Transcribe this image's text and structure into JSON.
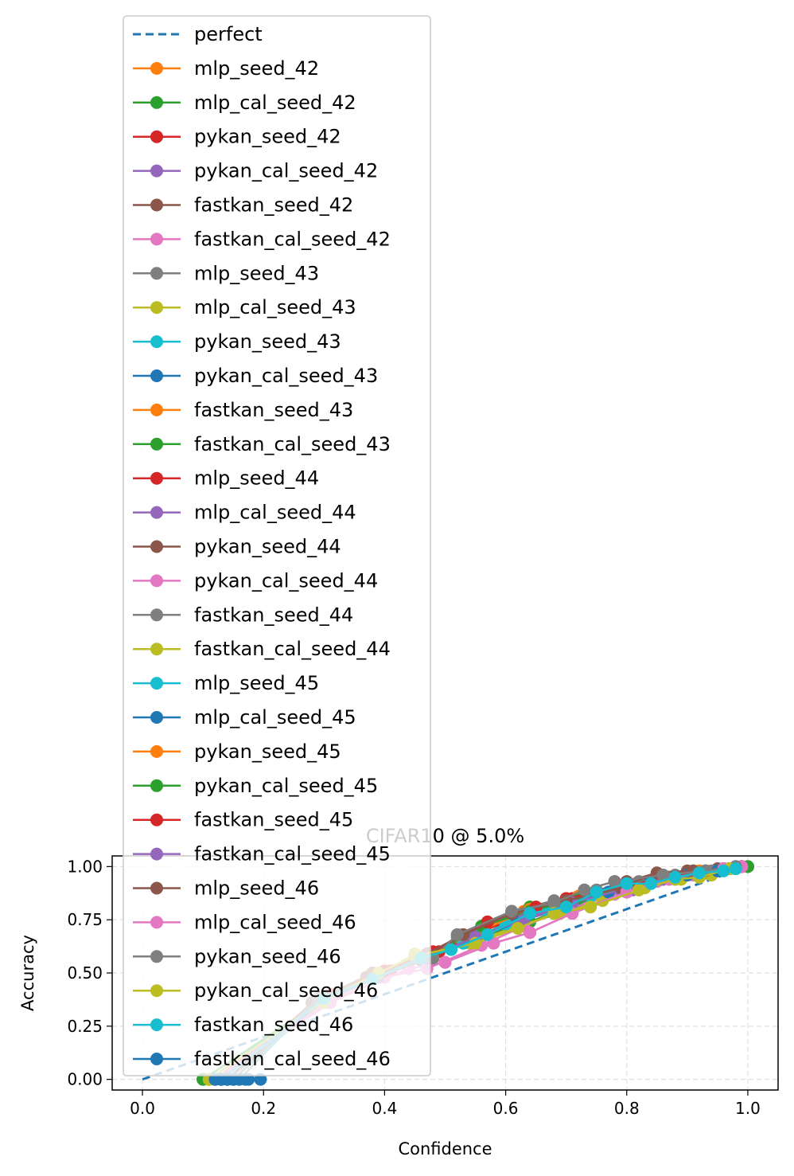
{
  "chart_data": {
    "type": "line",
    "title": "CIFAR10 @ 5.0%",
    "xlabel": "Confidence",
    "ylabel": "Accuracy",
    "xlim": [
      -0.05,
      1.05
    ],
    "ylim": [
      -0.05,
      1.05
    ],
    "xticks": [
      "0.0",
      "0.2",
      "0.4",
      "0.6",
      "0.8",
      "1.0"
    ],
    "yticks": [
      "0.00",
      "0.25",
      "0.50",
      "0.75",
      "1.00"
    ],
    "grid": true,
    "legend_position": "top-left",
    "reference": {
      "name": "perfect",
      "color": "#1f77b4",
      "x": [
        0,
        1
      ],
      "y": [
        0,
        1
      ]
    },
    "series": [
      {
        "name": "mlp_seed_42",
        "color": "#ff7f0e",
        "x": [
          0.12,
          0.3,
          0.4,
          0.48,
          0.56,
          0.64,
          0.72,
          0.8,
          0.87,
          0.93,
          0.97,
          0.99
        ],
        "y": [
          0,
          0.38,
          0.5,
          0.59,
          0.7,
          0.81,
          0.86,
          0.91,
          0.95,
          0.98,
          0.99,
          1.0
        ]
      },
      {
        "name": "mlp_cal_seed_42",
        "color": "#2ca02c",
        "x": [
          0.1,
          0.29,
          0.39,
          0.47,
          0.55,
          0.64,
          0.73,
          0.82,
          0.88,
          0.93,
          0.97,
          1.0
        ],
        "y": [
          0,
          0.36,
          0.48,
          0.57,
          0.66,
          0.74,
          0.84,
          0.9,
          0.95,
          0.97,
          0.99,
          1.0
        ]
      },
      {
        "name": "pykan_seed_42",
        "color": "#d62728",
        "x": [
          0.13,
          0.31,
          0.41,
          0.49,
          0.57,
          0.65,
          0.7,
          0.79,
          0.86,
          0.92,
          0.96,
          0.99
        ],
        "y": [
          0,
          0.4,
          0.51,
          0.6,
          0.74,
          0.8,
          0.85,
          0.9,
          0.95,
          0.97,
          0.99,
          1.0
        ]
      },
      {
        "name": "pykan_cal_seed_42",
        "color": "#9467bd",
        "x": [
          0.11,
          0.3,
          0.38,
          0.46,
          0.55,
          0.63,
          0.72,
          0.81,
          0.88,
          0.93,
          0.97,
          0.99
        ],
        "y": [
          0,
          0.37,
          0.47,
          0.56,
          0.66,
          0.75,
          0.82,
          0.89,
          0.94,
          0.97,
          0.99,
          1.0
        ]
      },
      {
        "name": "fastkan_seed_42",
        "color": "#8c564b",
        "x": [
          0.14,
          0.28,
          0.38,
          0.47,
          0.53,
          0.61,
          0.7,
          0.79,
          0.85,
          0.91,
          0.96,
          0.99
        ],
        "y": [
          0,
          0.36,
          0.5,
          0.59,
          0.68,
          0.78,
          0.84,
          0.9,
          0.96,
          0.98,
          0.99,
          1.0
        ]
      },
      {
        "name": "fastkan_cal_seed_42",
        "color": "#e377c2",
        "x": [
          0.12,
          0.31,
          0.44,
          0.5,
          0.58,
          0.64,
          0.71,
          0.8,
          0.87,
          0.92,
          0.96,
          0.99
        ],
        "y": [
          0,
          0.37,
          0.52,
          0.55,
          0.64,
          0.69,
          0.78,
          0.88,
          0.94,
          0.97,
          0.99,
          1.0
        ]
      },
      {
        "name": "mlp_seed_43",
        "color": "#7f7f7f",
        "x": [
          0.15,
          0.29,
          0.39,
          0.48,
          0.52,
          0.61,
          0.68,
          0.73,
          0.78,
          0.86,
          0.93,
          0.98
        ],
        "y": [
          0,
          0.38,
          0.49,
          0.57,
          0.68,
          0.79,
          0.83,
          0.89,
          0.93,
          0.96,
          0.98,
          1.0
        ]
      },
      {
        "name": "mlp_cal_seed_43",
        "color": "#bcbd22",
        "x": [
          0.11,
          0.3,
          0.39,
          0.45,
          0.55,
          0.62,
          0.68,
          0.74,
          0.82,
          0.88,
          0.92,
          0.97
        ],
        "y": [
          0,
          0.37,
          0.5,
          0.58,
          0.64,
          0.71,
          0.78,
          0.81,
          0.89,
          0.94,
          0.95,
          0.99
        ]
      },
      {
        "name": "pykan_seed_43",
        "color": "#17becf",
        "x": [
          0.13,
          0.3,
          0.38,
          0.46,
          0.53,
          0.61,
          0.67,
          0.74,
          0.8,
          0.87,
          0.93,
          0.98
        ],
        "y": [
          0,
          0.38,
          0.48,
          0.56,
          0.64,
          0.73,
          0.79,
          0.87,
          0.92,
          0.95,
          0.98,
          1.0
        ]
      },
      {
        "name": "pykan_cal_seed_43",
        "color": "#1f77b4",
        "x": [
          0.14,
          0.3,
          0.39,
          0.47,
          0.54,
          0.62,
          0.69,
          0.77,
          0.84,
          0.9,
          0.95,
          0.99
        ],
        "y": [
          0,
          0.37,
          0.48,
          0.57,
          0.65,
          0.74,
          0.81,
          0.88,
          0.93,
          0.96,
          0.98,
          1.0
        ]
      },
      {
        "name": "fastkan_seed_43",
        "color": "#ff7f0e",
        "x": [
          0.12,
          0.29,
          0.39,
          0.47,
          0.56,
          0.63,
          0.71,
          0.79,
          0.86,
          0.91,
          0.96,
          0.99
        ],
        "y": [
          0,
          0.37,
          0.49,
          0.58,
          0.69,
          0.79,
          0.85,
          0.9,
          0.95,
          0.97,
          0.99,
          1.0
        ]
      },
      {
        "name": "fastkan_cal_seed_43",
        "color": "#2ca02c",
        "x": [
          0.11,
          0.3,
          0.4,
          0.48,
          0.56,
          0.64,
          0.71,
          0.78,
          0.85,
          0.91,
          0.96,
          0.99
        ],
        "y": [
          0,
          0.37,
          0.5,
          0.58,
          0.67,
          0.81,
          0.84,
          0.89,
          0.94,
          0.97,
          0.99,
          1.0
        ]
      },
      {
        "name": "mlp_seed_44",
        "color": "#d62728",
        "x": [
          0.13,
          0.3,
          0.39,
          0.47,
          0.55,
          0.63,
          0.71,
          0.79,
          0.86,
          0.92,
          0.96,
          0.99
        ],
        "y": [
          0,
          0.38,
          0.49,
          0.58,
          0.68,
          0.78,
          0.85,
          0.9,
          0.95,
          0.97,
          0.99,
          1.0
        ]
      },
      {
        "name": "mlp_cal_seed_44",
        "color": "#9467bd",
        "x": [
          0.12,
          0.3,
          0.39,
          0.47,
          0.55,
          0.63,
          0.71,
          0.79,
          0.86,
          0.92,
          0.96,
          0.99
        ],
        "y": [
          0,
          0.37,
          0.48,
          0.57,
          0.67,
          0.76,
          0.83,
          0.89,
          0.94,
          0.97,
          0.99,
          1.0
        ]
      },
      {
        "name": "pykan_seed_44",
        "color": "#8c564b",
        "x": [
          0.14,
          0.29,
          0.37,
          0.46,
          0.55,
          0.63,
          0.72,
          0.8,
          0.85,
          0.9,
          0.95,
          0.99
        ],
        "y": [
          0,
          0.37,
          0.48,
          0.56,
          0.66,
          0.78,
          0.86,
          0.93,
          0.97,
          0.98,
          0.99,
          1.0
        ]
      },
      {
        "name": "pykan_cal_seed_44",
        "color": "#e377c2",
        "x": [
          0.12,
          0.31,
          0.4,
          0.47,
          0.56,
          0.63,
          0.7,
          0.78,
          0.85,
          0.91,
          0.96,
          0.99
        ],
        "y": [
          0,
          0.36,
          0.48,
          0.52,
          0.63,
          0.72,
          0.8,
          0.87,
          0.93,
          0.96,
          0.98,
          1.0
        ]
      },
      {
        "name": "fastkan_seed_44",
        "color": "#7f7f7f",
        "x": [
          0.16,
          0.29,
          0.39,
          0.47,
          0.52,
          0.61,
          0.68,
          0.75,
          0.82,
          0.88,
          0.94,
          0.98
        ],
        "y": [
          0,
          0.38,
          0.5,
          0.58,
          0.67,
          0.79,
          0.84,
          0.89,
          0.93,
          0.96,
          0.98,
          1.0
        ]
      },
      {
        "name": "fastkan_cal_seed_44",
        "color": "#bcbd22",
        "x": [
          0.11,
          0.3,
          0.39,
          0.45,
          0.54,
          0.62,
          0.69,
          0.76,
          0.83,
          0.89,
          0.94,
          0.98
        ],
        "y": [
          0,
          0.36,
          0.49,
          0.59,
          0.64,
          0.72,
          0.78,
          0.84,
          0.9,
          0.94,
          0.96,
          0.99
        ]
      },
      {
        "name": "mlp_seed_45",
        "color": "#17becf",
        "x": [
          0.15,
          0.3,
          0.38,
          0.46,
          0.53,
          0.6,
          0.67,
          0.74,
          0.8,
          0.86,
          0.92,
          0.97
        ],
        "y": [
          0,
          0.38,
          0.48,
          0.57,
          0.64,
          0.73,
          0.79,
          0.86,
          0.91,
          0.95,
          0.97,
          0.99
        ]
      },
      {
        "name": "mlp_cal_seed_45",
        "color": "#1f77b4",
        "x": [
          0.13,
          0.3,
          0.39,
          0.47,
          0.55,
          0.62,
          0.7,
          0.77,
          0.84,
          0.9,
          0.95,
          0.99
        ],
        "y": [
          0,
          0.37,
          0.48,
          0.57,
          0.66,
          0.74,
          0.82,
          0.88,
          0.93,
          0.96,
          0.98,
          1.0
        ]
      },
      {
        "name": "pykan_seed_45",
        "color": "#ff7f0e",
        "x": [
          0.12,
          0.3,
          0.39,
          0.47,
          0.56,
          0.64,
          0.72,
          0.8,
          0.87,
          0.92,
          0.96,
          0.99
        ],
        "y": [
          0,
          0.38,
          0.5,
          0.59,
          0.7,
          0.8,
          0.86,
          0.91,
          0.95,
          0.98,
          0.99,
          1.0
        ]
      },
      {
        "name": "pykan_cal_seed_45",
        "color": "#2ca02c",
        "x": [
          0.1,
          0.3,
          0.39,
          0.47,
          0.56,
          0.64,
          0.72,
          0.8,
          0.87,
          0.92,
          0.96,
          1.0
        ],
        "y": [
          0,
          0.37,
          0.49,
          0.57,
          0.72,
          0.79,
          0.85,
          0.9,
          0.95,
          0.97,
          0.99,
          1.0
        ]
      },
      {
        "name": "fastkan_seed_45",
        "color": "#d62728",
        "x": [
          0.13,
          0.3,
          0.4,
          0.48,
          0.57,
          0.65,
          0.7,
          0.79,
          0.86,
          0.92,
          0.96,
          0.99
        ],
        "y": [
          0,
          0.39,
          0.51,
          0.6,
          0.74,
          0.81,
          0.85,
          0.9,
          0.95,
          0.97,
          0.99,
          1.0
        ]
      },
      {
        "name": "fastkan_cal_seed_45",
        "color": "#9467bd",
        "x": [
          0.12,
          0.3,
          0.39,
          0.47,
          0.55,
          0.63,
          0.71,
          0.79,
          0.86,
          0.92,
          0.96,
          0.99
        ],
        "y": [
          0,
          0.37,
          0.48,
          0.57,
          0.67,
          0.75,
          0.83,
          0.89,
          0.94,
          0.97,
          0.99,
          1.0
        ]
      },
      {
        "name": "mlp_seed_46",
        "color": "#8c564b",
        "x": [
          0.14,
          0.28,
          0.38,
          0.47,
          0.53,
          0.61,
          0.7,
          0.79,
          0.85,
          0.91,
          0.96,
          0.99
        ],
        "y": [
          0,
          0.36,
          0.5,
          0.59,
          0.68,
          0.78,
          0.84,
          0.9,
          0.97,
          0.98,
          0.99,
          1.0
        ]
      },
      {
        "name": "mlp_cal_seed_46",
        "color": "#e377c2",
        "x": [
          0.12,
          0.31,
          0.44,
          0.5,
          0.58,
          0.64,
          0.71,
          0.8,
          0.87,
          0.92,
          0.96,
          0.99
        ],
        "y": [
          0,
          0.37,
          0.52,
          0.55,
          0.64,
          0.69,
          0.78,
          0.88,
          0.94,
          0.97,
          0.99,
          1.0
        ]
      },
      {
        "name": "pykan_seed_46",
        "color": "#7f7f7f",
        "x": [
          0.15,
          0.29,
          0.39,
          0.48,
          0.52,
          0.61,
          0.68,
          0.73,
          0.78,
          0.86,
          0.93,
          0.98
        ],
        "y": [
          0,
          0.38,
          0.49,
          0.57,
          0.68,
          0.79,
          0.83,
          0.89,
          0.93,
          0.96,
          0.98,
          1.0
        ]
      },
      {
        "name": "pykan_cal_seed_46",
        "color": "#bcbd22",
        "x": [
          0.11,
          0.3,
          0.39,
          0.45,
          0.55,
          0.62,
          0.68,
          0.74,
          0.82,
          0.88,
          0.92,
          0.97
        ],
        "y": [
          0,
          0.37,
          0.5,
          0.58,
          0.64,
          0.71,
          0.78,
          0.81,
          0.89,
          0.94,
          0.95,
          0.99
        ]
      },
      {
        "name": "fastkan_seed_46",
        "color": "#17becf",
        "x": [
          0.13,
          0.3,
          0.38,
          0.46,
          0.51,
          0.57,
          0.64,
          0.7,
          0.75,
          0.8,
          0.84,
          0.88,
          0.92,
          0.96,
          0.98
        ],
        "y": [
          0,
          0.38,
          0.47,
          0.57,
          0.61,
          0.68,
          0.78,
          0.81,
          0.88,
          0.92,
          0.92,
          0.95,
          0.97,
          0.98,
          0.99
        ]
      },
      {
        "name": "fastkan_cal_seed_46",
        "color": "#1f77b4",
        "x": [
          0.12,
          0.13,
          0.14,
          0.15,
          0.16,
          0.17,
          0.175,
          0.195
        ],
        "y": [
          0,
          0,
          0,
          0,
          0,
          0,
          0,
          0
        ]
      }
    ]
  }
}
